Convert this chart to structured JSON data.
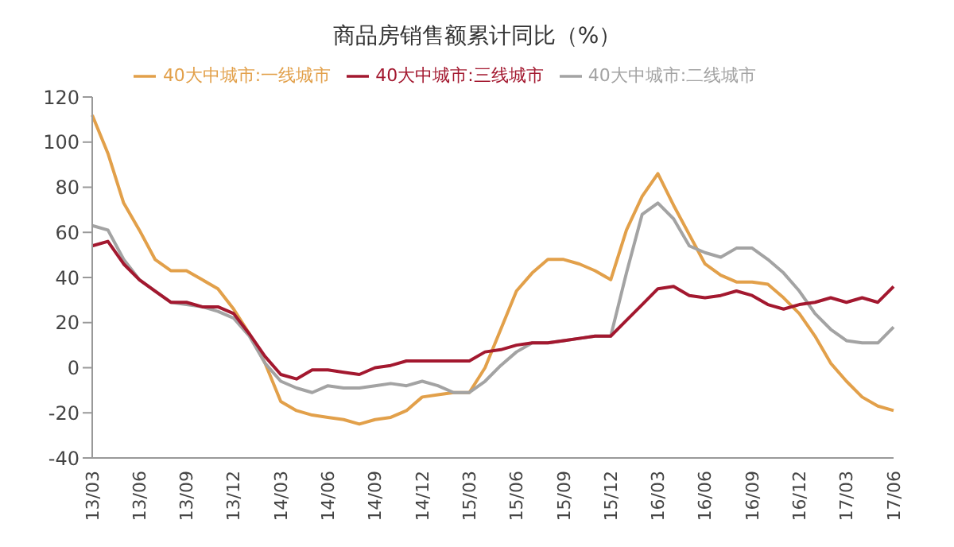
{
  "chart_data": {
    "type": "line",
    "title": "商品房销售额累计同比（%）",
    "categories": [
      "13/03",
      null,
      null,
      "13/06",
      null,
      null,
      "13/09",
      null,
      null,
      "13/12",
      null,
      null,
      "14/03",
      null,
      null,
      "14/06",
      null,
      null,
      "14/09",
      null,
      null,
      "14/12",
      null,
      null,
      "15/03",
      null,
      null,
      "15/06",
      null,
      null,
      "15/09",
      null,
      null,
      "15/12",
      null,
      null,
      "16/03",
      null,
      null,
      "16/06",
      null,
      null,
      "16/09",
      null,
      null,
      "16/12",
      null,
      null,
      "17/03",
      null,
      null,
      "17/06"
    ],
    "series": [
      {
        "name": "40大中城市:一线城市",
        "color": "#e2a04a",
        "values": [
          112,
          95,
          73,
          61,
          48,
          43,
          43,
          39,
          35,
          26,
          15,
          2,
          -15,
          -19,
          -21,
          -22,
          -23,
          -25,
          -23,
          -22,
          -19,
          -13,
          -12,
          -11,
          -11,
          0,
          17,
          34,
          42,
          48,
          48,
          46,
          43,
          39,
          61,
          76,
          86,
          72,
          59,
          46,
          41,
          38,
          38,
          37,
          31,
          24,
          14,
          2,
          -6,
          -13,
          -17,
          -19
        ]
      },
      {
        "name": "40大中城市:二线城市",
        "color": "#a3a3a3",
        "values": [
          63,
          61,
          48,
          39,
          34,
          29,
          28,
          27,
          25,
          22,
          14,
          2,
          -6,
          -9,
          -11,
          -8,
          -9,
          -9,
          -8,
          -7,
          -8,
          -6,
          -8,
          -11,
          -11,
          -6,
          1,
          7,
          11,
          11,
          12,
          13,
          14,
          14,
          42,
          68,
          73,
          66,
          54,
          51,
          49,
          53,
          53,
          48,
          42,
          34,
          24,
          17,
          12,
          11,
          11,
          18
        ]
      },
      {
        "name": "40大中城市:三线城市",
        "color": "#a3182f",
        "values": [
          54,
          56,
          46,
          39,
          34,
          29,
          29,
          27,
          27,
          24,
          15,
          5,
          -3,
          -5,
          -1,
          -1,
          -2,
          -3,
          0,
          1,
          3,
          3,
          3,
          3,
          3,
          7,
          8,
          10,
          11,
          11,
          12,
          13,
          14,
          14,
          21,
          28,
          35,
          36,
          32,
          31,
          32,
          34,
          32,
          28,
          26,
          28,
          29,
          31,
          29,
          31,
          29,
          36
        ]
      }
    ],
    "ylim": [
      -40,
      120
    ],
    "yticks": [
      -40,
      -20,
      0,
      20,
      40,
      60,
      80,
      100,
      120
    ],
    "grid": false,
    "legend": "top",
    "marker": "none",
    "line_style": "solid"
  }
}
